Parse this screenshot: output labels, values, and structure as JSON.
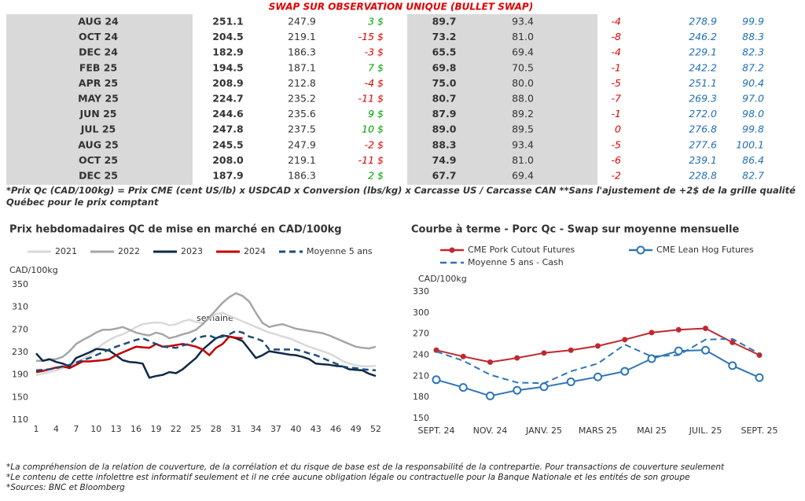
{
  "table": {
    "title": "SWAP SUR OBSERVATION UNIQUE (BULLET SWAP)",
    "rows": [
      [
        "AUG 24",
        "251.1",
        "247.9",
        "3 $",
        "89.7",
        "93.4",
        "-4",
        "278.9",
        "99.9"
      ],
      [
        "OCT 24",
        "204.5",
        "219.1",
        "-15 $",
        "73.2",
        "81.0",
        "-8",
        "246.2",
        "88.3"
      ],
      [
        "DEC 24",
        "182.9",
        "186.3",
        "-3 $",
        "65.5",
        "69.4",
        "-4",
        "229.1",
        "82.3"
      ],
      [
        "FEB 25",
        "194.5",
        "187.1",
        "7 $",
        "69.8",
        "70.5",
        "-1",
        "242.2",
        "87.2"
      ],
      [
        "APR 25",
        "208.9",
        "212.8",
        "-4 $",
        "75.0",
        "80.0",
        "-5",
        "251.1",
        "90.4"
      ],
      [
        "MAY 25",
        "224.7",
        "235.2",
        "-11 $",
        "80.7",
        "88.0",
        "-7",
        "269.3",
        "97.0"
      ],
      [
        "JUN 25",
        "244.6",
        "235.6",
        "9 $",
        "87.9",
        "89.2",
        "-1",
        "272.0",
        "98.0"
      ],
      [
        "JUL 25",
        "247.8",
        "237.5",
        "10 $",
        "89.0",
        "89.5",
        "0",
        "276.8",
        "99.8"
      ],
      [
        "AUG 25",
        "245.5",
        "247.9",
        "-2 $",
        "88.3",
        "93.4",
        "-5",
        "277.6",
        "100.1"
      ],
      [
        "OCT 25",
        "208.0",
        "219.1",
        "-11 $",
        "74.9",
        "81.0",
        "-6",
        "239.1",
        "86.4"
      ],
      [
        "DEC 25",
        "187.9",
        "186.3",
        "2 $",
        "67.7",
        "69.4",
        "-2",
        "228.8",
        "82.7"
      ]
    ],
    "note": "*Prix Qc (CAD/100kg) = Prix CME (cent US/lb) x USDCAD x Conversion (lbs/kg) x Carcasse US / Carcasse CAN **Sans l'ajustement de +2$ de la grille qualité Québec pour le prix comptant"
  },
  "chart_data": [
    {
      "type": "line",
      "title": "Prix hebdomadaires QC de mise en marché en CAD/100kg",
      "y_label": "CAD/100kg",
      "x_label": "semaine",
      "x": [
        1,
        2,
        3,
        4,
        5,
        6,
        7,
        8,
        9,
        10,
        11,
        12,
        13,
        14,
        15,
        16,
        17,
        18,
        19,
        20,
        21,
        22,
        23,
        24,
        25,
        26,
        27,
        28,
        29,
        30,
        31,
        32,
        33,
        34,
        35,
        36,
        37,
        38,
        39,
        40,
        41,
        42,
        43,
        44,
        45,
        46,
        47,
        48,
        49,
        50,
        51,
        52
      ],
      "xlim": [
        1,
        52
      ],
      "xticks": [
        1,
        4,
        7,
        10,
        13,
        16,
        19,
        22,
        25,
        28,
        31,
        34,
        37,
        40,
        43,
        46,
        49,
        52
      ],
      "ylim": [
        110,
        350
      ],
      "yticks": [
        110,
        150,
        190,
        230,
        270,
        310,
        350
      ],
      "grid": false,
      "series": [
        {
          "name": "2021",
          "color": "#d9d9d9",
          "dashed": false,
          "values": [
            190,
            192,
            195,
            198,
            202,
            207,
            212,
            218,
            225,
            235,
            245,
            252,
            258,
            262,
            268,
            275,
            280,
            282,
            283,
            282,
            278,
            280,
            285,
            288,
            284,
            282,
            290,
            298,
            300,
            295,
            290,
            285,
            280,
            275,
            270,
            265,
            262,
            258,
            255,
            250,
            245,
            240,
            236,
            232,
            228,
            222,
            215,
            210,
            207,
            205,
            205,
            206
          ]
        },
        {
          "name": "2022",
          "color": "#a6a6a6",
          "dashed": false,
          "values": [
            215,
            215,
            217,
            218,
            222,
            232,
            245,
            252,
            258,
            265,
            270,
            270,
            272,
            275,
            270,
            265,
            262,
            260,
            265,
            262,
            255,
            258,
            262,
            265,
            270,
            280,
            292,
            305,
            318,
            328,
            335,
            330,
            320,
            300,
            282,
            275,
            278,
            280,
            276,
            272,
            270,
            268,
            266,
            264,
            260,
            255,
            250,
            245,
            240,
            238,
            237,
            240
          ]
        },
        {
          "name": "2023",
          "color": "#0e2a47",
          "dashed": false,
          "values": [
            228,
            215,
            218,
            213,
            210,
            205,
            220,
            225,
            230,
            236,
            235,
            233,
            225,
            216,
            213,
            212,
            210,
            185,
            188,
            190,
            195,
            193,
            200,
            210,
            220,
            235,
            245,
            255,
            260,
            258,
            255,
            250,
            235,
            220,
            225,
            232,
            230,
            228,
            226,
            225,
            222,
            218,
            210,
            209,
            208,
            206,
            205,
            200,
            199,
            198,
            192,
            188
          ]
        },
        {
          "name": "2024",
          "color": "#c00000",
          "dashed": false,
          "values": [
            195,
            197,
            200,
            203,
            205,
            202,
            208,
            214,
            214,
            215,
            216,
            218,
            225,
            230,
            235,
            240,
            239,
            238,
            245,
            240,
            241,
            243,
            245,
            243,
            240,
            235,
            225,
            238,
            245,
            258,
            256,
            255,
            null,
            null,
            null,
            null,
            null,
            null,
            null,
            null,
            null,
            null,
            null,
            null,
            null,
            null,
            null,
            null,
            null,
            null,
            null,
            null
          ]
        },
        {
          "name": "Moyenne 5 ans",
          "color": "#1f4e79",
          "dashed": true,
          "values": [
            198,
            199,
            200,
            202,
            205,
            208,
            212,
            216,
            220,
            225,
            230,
            235,
            240,
            244,
            248,
            252,
            255,
            250,
            245,
            240,
            239,
            238,
            242,
            245,
            255,
            258,
            260,
            255,
            258,
            262,
            268,
            265,
            258,
            255,
            250,
            235,
            235,
            235,
            235,
            235,
            232,
            228,
            225,
            220,
            215,
            210,
            205,
            203,
            202,
            200,
            199,
            198
          ]
        }
      ]
    },
    {
      "type": "line",
      "title": "Courbe à terme - Porc Qc - Swap sur moyenne mensuelle",
      "y_label": "CAD/100kg",
      "categories": [
        "SEPT. 24",
        null,
        "NOV. 24",
        null,
        "JANV. 25",
        null,
        "MARS 25",
        null,
        "MAI 25",
        null,
        "JUIL. 25",
        null,
        "SEPT. 25"
      ],
      "ylim": [
        150,
        330
      ],
      "yticks": [
        150,
        180,
        210,
        240,
        270,
        300,
        330
      ],
      "grid": false,
      "series": [
        {
          "name": "CME Pork Cutout Futures",
          "color": "#c0282e",
          "dashed": false,
          "marker": "filled",
          "values": [
            247,
            238,
            230,
            236,
            243,
            247,
            253,
            262,
            272,
            276,
            278,
            258,
            240
          ]
        },
        {
          "name": "CME Lean Hog Futures",
          "color": "#2e75b6",
          "dashed": false,
          "marker": "open",
          "values": [
            205,
            194,
            182,
            190,
            195,
            202,
            209,
            217,
            235,
            246,
            247,
            225,
            208
          ]
        },
        {
          "name": "Moyenne 5 ans - Cash",
          "color": "#2e75b6",
          "dashed": true,
          "values": [
            245,
            232,
            212,
            201,
            200,
            217,
            228,
            255,
            238,
            240,
            262,
            263,
            242
          ]
        }
      ]
    }
  ],
  "footnotes": [
    "*La compréhension de la relation de couverture, de la corrélation et du risque de base est de la responsabilité de la contrepartie. Pour transactions de couverture seulement",
    "*Le contenu de cette infolettre est informatif seulement et il ne crée aucune obligation légale ou contractuelle pour la Banque Nationale et les entités de son groupe",
    "*Sources: BNC et Bloomberg"
  ]
}
